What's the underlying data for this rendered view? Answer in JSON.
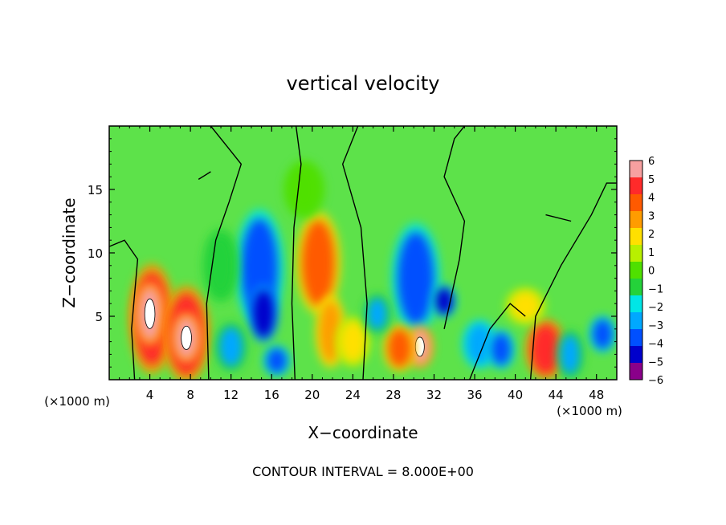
{
  "chart_data": {
    "type": "heatmap",
    "title": "vertical velocity",
    "xlabel": "X−coordinate",
    "ylabel": "Z−coordinate",
    "x_unit_left": "(×1000 m)",
    "x_unit_right": "(×1000 m)",
    "xlim": [
      0,
      50
    ],
    "ylim": [
      0,
      20
    ],
    "x_ticks": [
      4,
      8,
      12,
      16,
      20,
      24,
      28,
      32,
      36,
      40,
      44,
      48
    ],
    "x_tick_labels": [
      "4",
      "8",
      "12",
      "16",
      "20",
      "24",
      "28",
      "32",
      "36",
      "40",
      "44",
      "48"
    ],
    "y_ticks": [
      5,
      10,
      15
    ],
    "y_tick_labels": [
      "5",
      "10",
      "15"
    ],
    "colorbar": {
      "levels": [
        6,
        5,
        4,
        3,
        2,
        1,
        0,
        -1,
        -2,
        -3,
        -4,
        -5,
        -6
      ],
      "labels": [
        "6",
        "5",
        "4",
        "3",
        "2",
        "1",
        "0",
        "−1",
        "−2",
        "−3",
        "−4",
        "−5",
        "−6"
      ],
      "colors": [
        "#f7a0a0",
        "#ff2a2a",
        "#ff5a00",
        "#ff9c00",
        "#ffe000",
        "#b8f000",
        "#4fe000",
        "#24d23a",
        "#00e6e6",
        "#00a8ff",
        "#0050ff",
        "#0000cc",
        "#8a008a"
      ]
    },
    "field_colors": {
      "background": "#5de24a",
      "white_core": "#ffffff"
    },
    "cells": [
      {
        "x": 4.2,
        "z": 4.8,
        "w": 2.4,
        "h": 6.5,
        "v": 5.0
      },
      {
        "x": 4.0,
        "z": 5.2,
        "w": 1.3,
        "h": 3.5,
        "v": 6.0
      },
      {
        "x": 7.6,
        "z": 3.6,
        "w": 2.5,
        "h": 5.6,
        "v": 5.0
      },
      {
        "x": 7.6,
        "z": 3.3,
        "w": 1.3,
        "h": 2.6,
        "v": 6.0
      },
      {
        "x": 14.8,
        "z": 8.8,
        "w": 2.6,
        "h": 7.0,
        "v": -4.0
      },
      {
        "x": 15.2,
        "z": 5.2,
        "w": 1.2,
        "h": 3.0,
        "v": -5.5
      },
      {
        "x": 16.5,
        "z": 1.5,
        "w": 1.0,
        "h": 1.2,
        "v": -4.5
      },
      {
        "x": 20.6,
        "z": 9.2,
        "w": 2.3,
        "h": 6.0,
        "v": 4.0
      },
      {
        "x": 21.8,
        "z": 3.8,
        "w": 1.2,
        "h": 4.0,
        "v": 3.0
      },
      {
        "x": 24.0,
        "z": 3.0,
        "w": 1.6,
        "h": 2.5,
        "v": 1.5
      },
      {
        "x": 30.2,
        "z": 8.0,
        "w": 2.6,
        "h": 6.5,
        "v": -4.2
      },
      {
        "x": 30.6,
        "z": 2.6,
        "w": 1.0,
        "h": 2.0,
        "v": 6.0
      },
      {
        "x": 28.6,
        "z": 2.5,
        "w": 1.4,
        "h": 2.3,
        "v": 4.0
      },
      {
        "x": 33.0,
        "z": 6.2,
        "w": 0.8,
        "h": 1.4,
        "v": -5.0
      },
      {
        "x": 36.5,
        "z": 2.8,
        "w": 1.6,
        "h": 2.4,
        "v": -3.5
      },
      {
        "x": 38.6,
        "z": 2.4,
        "w": 1.0,
        "h": 1.8,
        "v": -4.0
      },
      {
        "x": 43.0,
        "z": 2.4,
        "w": 2.0,
        "h": 3.2,
        "v": 5.0
      },
      {
        "x": 45.4,
        "z": 2.0,
        "w": 1.0,
        "h": 2.4,
        "v": -3.0
      },
      {
        "x": 41.0,
        "z": 5.8,
        "w": 2.0,
        "h": 1.6,
        "v": 2.0
      },
      {
        "x": 12.0,
        "z": 2.6,
        "w": 1.4,
        "h": 2.4,
        "v": -3.0
      },
      {
        "x": 26.4,
        "z": 5.2,
        "w": 1.0,
        "h": 1.8,
        "v": -3.0
      },
      {
        "x": 11.0,
        "z": 9.0,
        "w": 1.6,
        "h": 4.0,
        "v": -1.5
      },
      {
        "x": 19.2,
        "z": 15.0,
        "w": 2.0,
        "h": 3.0,
        "v": -0.5
      },
      {
        "x": 48.6,
        "z": 3.6,
        "w": 1.0,
        "h": 1.6,
        "v": -4.0
      }
    ]
  },
  "footer": {
    "contour_interval": "CONTOUR INTERVAL = 8.000E+00"
  }
}
